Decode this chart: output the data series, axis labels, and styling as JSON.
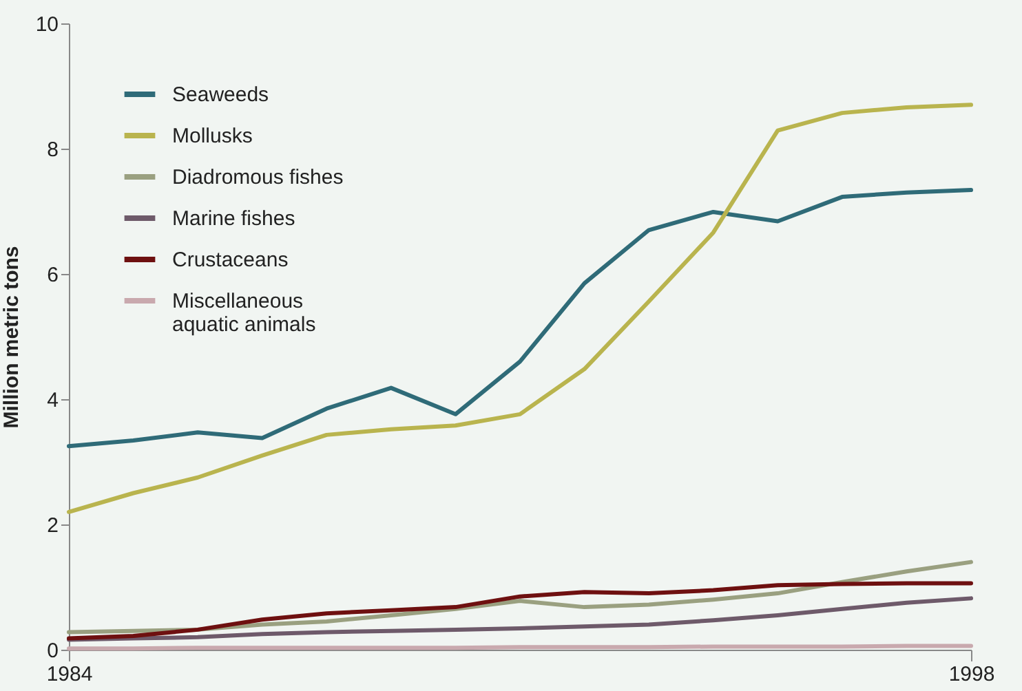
{
  "chart_data": {
    "type": "line",
    "ylabel": "Million metric tons",
    "x": [
      1984,
      1985,
      1986,
      1987,
      1988,
      1989,
      1990,
      1991,
      1992,
      1993,
      1994,
      1995,
      1996,
      1997,
      1998
    ],
    "xlim": [
      1984,
      1998
    ],
    "xticks": [
      1984,
      1998
    ],
    "ylim": [
      0,
      10
    ],
    "yticks": [
      0,
      2,
      4,
      6,
      8,
      10
    ],
    "grid": false,
    "legend": "top left",
    "series": [
      {
        "name": "Seaweeds",
        "color": "#2f6b78",
        "values": [
          3.25,
          3.34,
          3.47,
          3.38,
          3.85,
          4.18,
          3.76,
          4.6,
          5.85,
          6.7,
          6.99,
          6.84,
          7.23,
          7.3,
          7.34
        ]
      },
      {
        "name": "Mollusks",
        "color": "#b9b44e",
        "values": [
          2.2,
          2.5,
          2.75,
          3.1,
          3.43,
          3.52,
          3.58,
          3.76,
          4.48,
          5.56,
          6.66,
          8.29,
          8.57,
          8.66,
          8.7
        ]
      },
      {
        "name": "Diadromous fishes",
        "color": "#9aa080",
        "values": [
          0.28,
          0.3,
          0.32,
          0.4,
          0.45,
          0.55,
          0.65,
          0.78,
          0.68,
          0.72,
          0.8,
          0.9,
          1.08,
          1.25,
          1.4
        ]
      },
      {
        "name": "Marine fishes",
        "color": "#6e5a6a",
        "values": [
          0.16,
          0.18,
          0.2,
          0.25,
          0.28,
          0.3,
          0.32,
          0.34,
          0.37,
          0.4,
          0.47,
          0.55,
          0.65,
          0.75,
          0.82
        ]
      },
      {
        "name": "Crustaceans",
        "color": "#6e1010",
        "values": [
          0.18,
          0.22,
          0.32,
          0.48,
          0.58,
          0.63,
          0.68,
          0.85,
          0.92,
          0.9,
          0.95,
          1.03,
          1.05,
          1.06,
          1.06
        ]
      },
      {
        "name": "Miscellaneous\naquatic animals",
        "color": "#c9a9ae",
        "values": [
          0.02,
          0.02,
          0.03,
          0.03,
          0.03,
          0.03,
          0.03,
          0.04,
          0.04,
          0.04,
          0.05,
          0.05,
          0.05,
          0.06,
          0.06
        ]
      }
    ]
  }
}
